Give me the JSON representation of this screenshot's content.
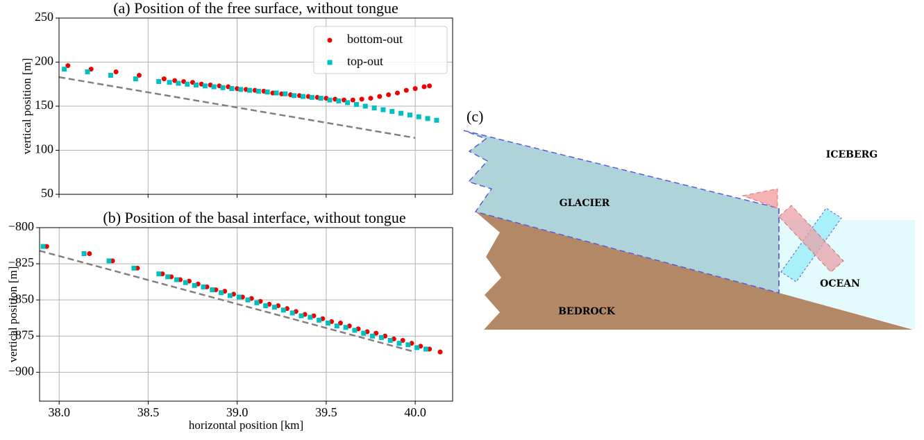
{
  "chart_data": [
    {
      "type": "scatter",
      "title": "(a) Position of the free surface, without tongue",
      "ylabel": "vertical position [m]",
      "xlim": [
        38.0,
        40.21
      ],
      "ylim": [
        50,
        250
      ],
      "xticks": [
        38.0,
        38.5,
        39.0,
        39.5,
        40.0
      ],
      "show_xtick_labels": false,
      "yticks": [
        50,
        100,
        150,
        200,
        250
      ],
      "grid": true,
      "legend": "upper right",
      "reference_line": {
        "color": "#808080",
        "style": "dashed",
        "x": [
          38.0,
          40.0
        ],
        "values": [
          183,
          114
        ]
      },
      "series": [
        {
          "name": "bottom-out",
          "color": "#ee0000",
          "marker": "circle",
          "x": [
            38.05,
            38.18,
            38.32,
            38.45,
            38.59,
            38.65,
            38.7,
            38.75,
            38.8,
            38.85,
            38.9,
            38.95,
            39.0,
            39.05,
            39.1,
            39.15,
            39.2,
            39.25,
            39.3,
            39.35,
            39.4,
            39.45,
            39.5,
            39.55,
            39.6,
            39.65,
            39.7,
            39.75,
            39.8,
            39.85,
            39.9,
            39.95,
            40.0,
            40.05,
            40.08
          ],
          "values": [
            196,
            192,
            189,
            185,
            181,
            179,
            178,
            177,
            175,
            174,
            173,
            172,
            170,
            169,
            168,
            167,
            165,
            164,
            163,
            162,
            161,
            160,
            159,
            158,
            157,
            157,
            158,
            159,
            161,
            163,
            165,
            168,
            170,
            172,
            173
          ]
        },
        {
          "name": "top-out",
          "color": "#00bfbf",
          "marker": "square",
          "x": [
            38.03,
            38.16,
            38.29,
            38.43,
            38.56,
            38.62,
            38.67,
            38.72,
            38.77,
            38.82,
            38.87,
            38.92,
            38.97,
            39.02,
            39.07,
            39.12,
            39.17,
            39.22,
            39.27,
            39.32,
            39.37,
            39.42,
            39.47,
            39.52,
            39.57,
            39.62,
            39.67,
            39.72,
            39.77,
            39.82,
            39.87,
            39.92,
            39.97,
            40.02,
            40.07,
            40.12
          ],
          "values": [
            192,
            189,
            185,
            181,
            178,
            177,
            176,
            175,
            174,
            173,
            172,
            171,
            170,
            169,
            168,
            167,
            166,
            165,
            164,
            162,
            161,
            160,
            159,
            157,
            156,
            154,
            152,
            150,
            148,
            146,
            144,
            142,
            140,
            138,
            136,
            134
          ]
        }
      ]
    },
    {
      "type": "scatter",
      "title": "(b) Position of the basal interface, without tongue",
      "xlabel": "horizontal position [km]",
      "ylabel": "vertical position [m]",
      "xlim": [
        37.89,
        40.21
      ],
      "ylim": [
        -920,
        -800
      ],
      "xticks": [
        {
          "value": 38.0,
          "label": "38.0"
        },
        38.5,
        {
          "value": 39.0,
          "label": "39.0"
        },
        39.5,
        {
          "value": 40.0,
          "label": "40.0"
        }
      ],
      "show_xtick_labels": true,
      "yticks": [
        {
          "value": -800,
          "label": "−800"
        },
        {
          "value": -825,
          "label": "−825"
        },
        {
          "value": -850,
          "label": "−850"
        },
        {
          "value": -875,
          "label": "−875"
        },
        {
          "value": -900,
          "label": "−900"
        }
      ],
      "grid": true,
      "reference_line": {
        "color": "#808080",
        "style": "dashed",
        "x": [
          37.89,
          40.0
        ],
        "values": [
          -816,
          -886
        ]
      },
      "series": [
        {
          "color": "#ee0000",
          "marker": "circle",
          "x": [
            37.93,
            38.17,
            38.3,
            38.44,
            38.58,
            38.63,
            38.68,
            38.73,
            38.78,
            38.83,
            38.88,
            38.93,
            38.98,
            39.03,
            39.08,
            39.13,
            39.18,
            39.23,
            39.28,
            39.33,
            39.38,
            39.43,
            39.48,
            39.53,
            39.58,
            39.63,
            39.68,
            39.73,
            39.78,
            39.83,
            39.88,
            39.93,
            39.98,
            40.03,
            40.08,
            40.14
          ],
          "values": [
            -813,
            -818,
            -823,
            -828,
            -832,
            -834,
            -836,
            -837,
            -839,
            -841,
            -843,
            -844,
            -846,
            -848,
            -849,
            -851,
            -853,
            -854,
            -856,
            -858,
            -860,
            -861,
            -863,
            -865,
            -866,
            -868,
            -870,
            -872,
            -873,
            -875,
            -877,
            -878,
            -880,
            -882,
            -884,
            -886
          ]
        },
        {
          "color": "#00bfbf",
          "marker": "square",
          "x": [
            37.91,
            38.14,
            38.28,
            38.42,
            38.56,
            38.61,
            38.66,
            38.71,
            38.76,
            38.81,
            38.86,
            38.91,
            38.96,
            39.01,
            39.06,
            39.11,
            39.16,
            39.21,
            39.26,
            39.31,
            39.36,
            39.41,
            39.46,
            39.51,
            39.56,
            39.61,
            39.66,
            39.71,
            39.76,
            39.81,
            39.86,
            39.91,
            39.96,
            40.01,
            40.06
          ],
          "values": [
            -813,
            -818,
            -823,
            -828,
            -832,
            -834,
            -836,
            -838,
            -840,
            -841,
            -843,
            -845,
            -847,
            -848,
            -850,
            -852,
            -854,
            -855,
            -857,
            -859,
            -861,
            -862,
            -864,
            -866,
            -868,
            -869,
            -871,
            -873,
            -875,
            -876,
            -878,
            -880,
            -881,
            -883,
            -884
          ]
        }
      ]
    }
  ],
  "diagram": {
    "label": "(c)",
    "regions": {
      "glacier": "GLACIER",
      "iceberg": "ICEBERG",
      "ocean": "OCEAN",
      "bedrock": "BEDROCK"
    }
  }
}
